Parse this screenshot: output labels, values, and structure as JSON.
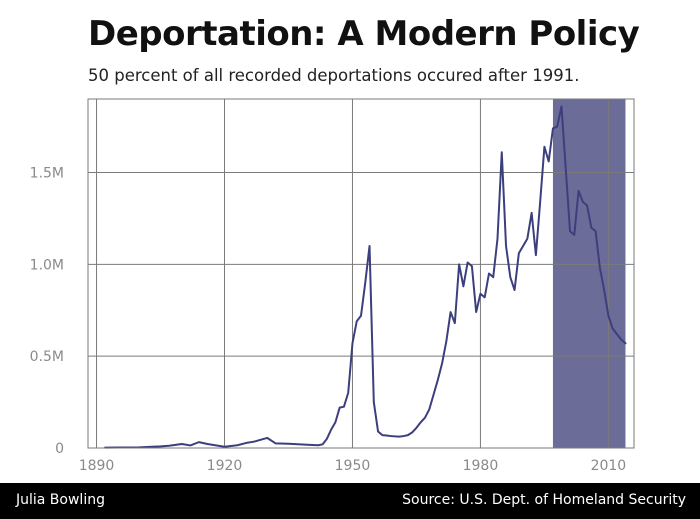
{
  "header": {
    "title": "Deportation: A Modern Policy",
    "subtitle": "50 percent of all recorded deportations occured after 1991."
  },
  "footer": {
    "author": "Julia Bowling",
    "source": "Source: U.S. Dept. of Homeland Security"
  },
  "colors": {
    "line": "#3d3f7d",
    "shade": "#6c6c98",
    "grid": "#7a7a7a",
    "axis_labels": "#8a8a8a"
  },
  "chart_data": {
    "type": "line",
    "title": "Deportation: A Modern Policy",
    "subtitle": "50 percent of all recorded deportations occured after 1991.",
    "xlabel": "",
    "ylabel": "",
    "xlim": [
      1888,
      2016
    ],
    "ylim": [
      0,
      1900000
    ],
    "x_ticks": [
      1890,
      1920,
      1950,
      1980,
      2010
    ],
    "x_tick_labels": [
      "1890",
      "1920",
      "1950",
      "1980",
      "2010"
    ],
    "y_ticks": [
      0,
      500000,
      1000000,
      1500000
    ],
    "y_tick_labels": [
      "0",
      "0.5M",
      "1.0M",
      "1.5M"
    ],
    "grid": true,
    "highlight_span": {
      "start": 1997,
      "end": 2014
    },
    "series": [
      {
        "x": [
          1892,
          1895,
          1900,
          1903,
          1905,
          1907,
          1910,
          1912,
          1914,
          1916,
          1920,
          1923,
          1925,
          1927,
          1930,
          1932,
          1935,
          1940,
          1942,
          1943,
          1944,
          1945,
          1946,
          1947,
          1948,
          1949,
          1950,
          1951,
          1952,
          1953,
          1954,
          1955,
          1956,
          1957,
          1958,
          1959,
          1960,
          1961,
          1962,
          1963,
          1964,
          1965,
          1966,
          1967,
          1968,
          1969,
          1970,
          1971,
          1972,
          1973,
          1974,
          1975,
          1976,
          1977,
          1978,
          1979,
          1980,
          1981,
          1982,
          1983,
          1984,
          1985,
          1986,
          1987,
          1988,
          1989,
          1990,
          1991,
          1992,
          1993,
          1994,
          1995,
          1996,
          1997,
          1998,
          1999,
          2000,
          2001,
          2002,
          2003,
          2004,
          2005,
          2006,
          2007,
          2008,
          2009,
          2010,
          2011,
          2012,
          2013,
          2014
        ],
        "values": [
          2000,
          2500,
          3500,
          7000,
          9000,
          12000,
          22000,
          14000,
          32000,
          22000,
          7000,
          15000,
          27000,
          35000,
          55000,
          25000,
          23000,
          17000,
          15000,
          20000,
          50000,
          100000,
          140000,
          220000,
          225000,
          300000,
          570000,
          690000,
          720000,
          900000,
          1100000,
          250000,
          90000,
          70000,
          68000,
          65000,
          63000,
          62000,
          65000,
          70000,
          85000,
          110000,
          140000,
          165000,
          210000,
          290000,
          370000,
          460000,
          580000,
          740000,
          680000,
          1000000,
          880000,
          1010000,
          990000,
          740000,
          840000,
          820000,
          950000,
          930000,
          1140000,
          1610000,
          1100000,
          930000,
          860000,
          1060000,
          1100000,
          1140000,
          1280000,
          1050000,
          1340000,
          1640000,
          1560000,
          1740000,
          1750000,
          1860000,
          1520000,
          1180000,
          1160000,
          1400000,
          1340000,
          1320000,
          1200000,
          1180000,
          980000,
          860000,
          720000,
          650000,
          620000,
          590000,
          570000
        ]
      }
    ]
  }
}
